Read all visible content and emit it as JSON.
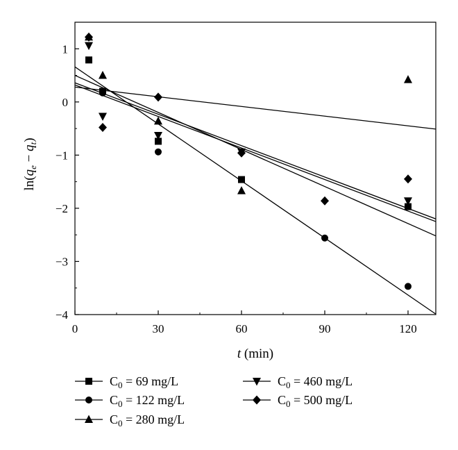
{
  "chart_data": {
    "type": "scatter",
    "title": "",
    "xlabel": "t (min)",
    "ylabel": "ln(qe − qt)",
    "xlabel_parts": {
      "var": "t",
      "unit": " (min)"
    },
    "ylabel_parts": {
      "prefix": "ln(",
      "q1": "q",
      "sub1": "e",
      "minus": " − ",
      "q2": "q",
      "sub2": "t",
      "suffix": ")"
    },
    "xlim": [
      0,
      130
    ],
    "ylim": [
      -4,
      1.5
    ],
    "xticks": [
      0,
      30,
      60,
      90,
      120
    ],
    "yticks": [
      -4,
      -3,
      -2,
      -1,
      0,
      1
    ],
    "xtick_labels": [
      "0",
      "30",
      "60",
      "90",
      "120"
    ],
    "ytick_labels": [
      "−4",
      "−3",
      "−2",
      "−1",
      "0",
      "1"
    ],
    "grid": false,
    "legend_position": "below",
    "series": [
      {
        "name": "C0 = 69 mg/L",
        "label_main": "C",
        "label_sub": "0",
        "label_rest": " = 69 mg/L",
        "marker": "square",
        "x": [
          5,
          10,
          30,
          60,
          120
        ],
        "y": [
          0.79,
          0.2,
          -0.74,
          -1.46,
          -1.97
        ],
        "fit": {
          "x": [
            0,
            130
          ],
          "y": [
            0.36,
            -2.2
          ]
        }
      },
      {
        "name": "C0 = 122 mg/L",
        "label_main": "C",
        "label_sub": "0",
        "label_rest": " = 122 mg/L",
        "marker": "circle",
        "x": [
          10,
          30,
          90,
          120
        ],
        "y": [
          0.17,
          -0.94,
          -2.56,
          -3.47
        ],
        "fit": {
          "x": [
            0,
            130
          ],
          "y": [
            0.66,
            -3.99
          ]
        }
      },
      {
        "name": "C0 = 280 mg/L",
        "label_main": "C",
        "label_sub": "0",
        "label_rest": " = 280 mg/L",
        "marker": "triangle-up",
        "x": [
          5,
          10,
          30,
          60,
          120
        ],
        "y": [
          1.22,
          0.5,
          -0.36,
          -1.67,
          0.42
        ],
        "fit": {
          "x": [
            0,
            130
          ],
          "y": [
            0.28,
            -0.51
          ]
        }
      },
      {
        "name": "C0 = 460 mg/L",
        "label_main": "C",
        "label_sub": "0",
        "label_rest": " = 460 mg/L",
        "marker": "triangle-down",
        "x": [
          5,
          10,
          30,
          60,
          120
        ],
        "y": [
          1.06,
          -0.27,
          -0.63,
          -0.94,
          -1.86
        ],
        "fit": {
          "x": [
            0,
            130
          ],
          "y": [
            0.32,
            -2.25
          ]
        }
      },
      {
        "name": "C0 = 500 mg/L",
        "label_main": "C",
        "label_sub": "0",
        "label_rest": " = 500 mg/L",
        "marker": "diamond",
        "x": [
          5,
          10,
          30,
          60,
          90,
          120
        ],
        "y": [
          1.22,
          -0.48,
          0.09,
          -0.96,
          -1.86,
          -1.45
        ],
        "fit": {
          "x": [
            0,
            130
          ],
          "y": [
            0.5,
            -2.52
          ]
        }
      }
    ]
  }
}
